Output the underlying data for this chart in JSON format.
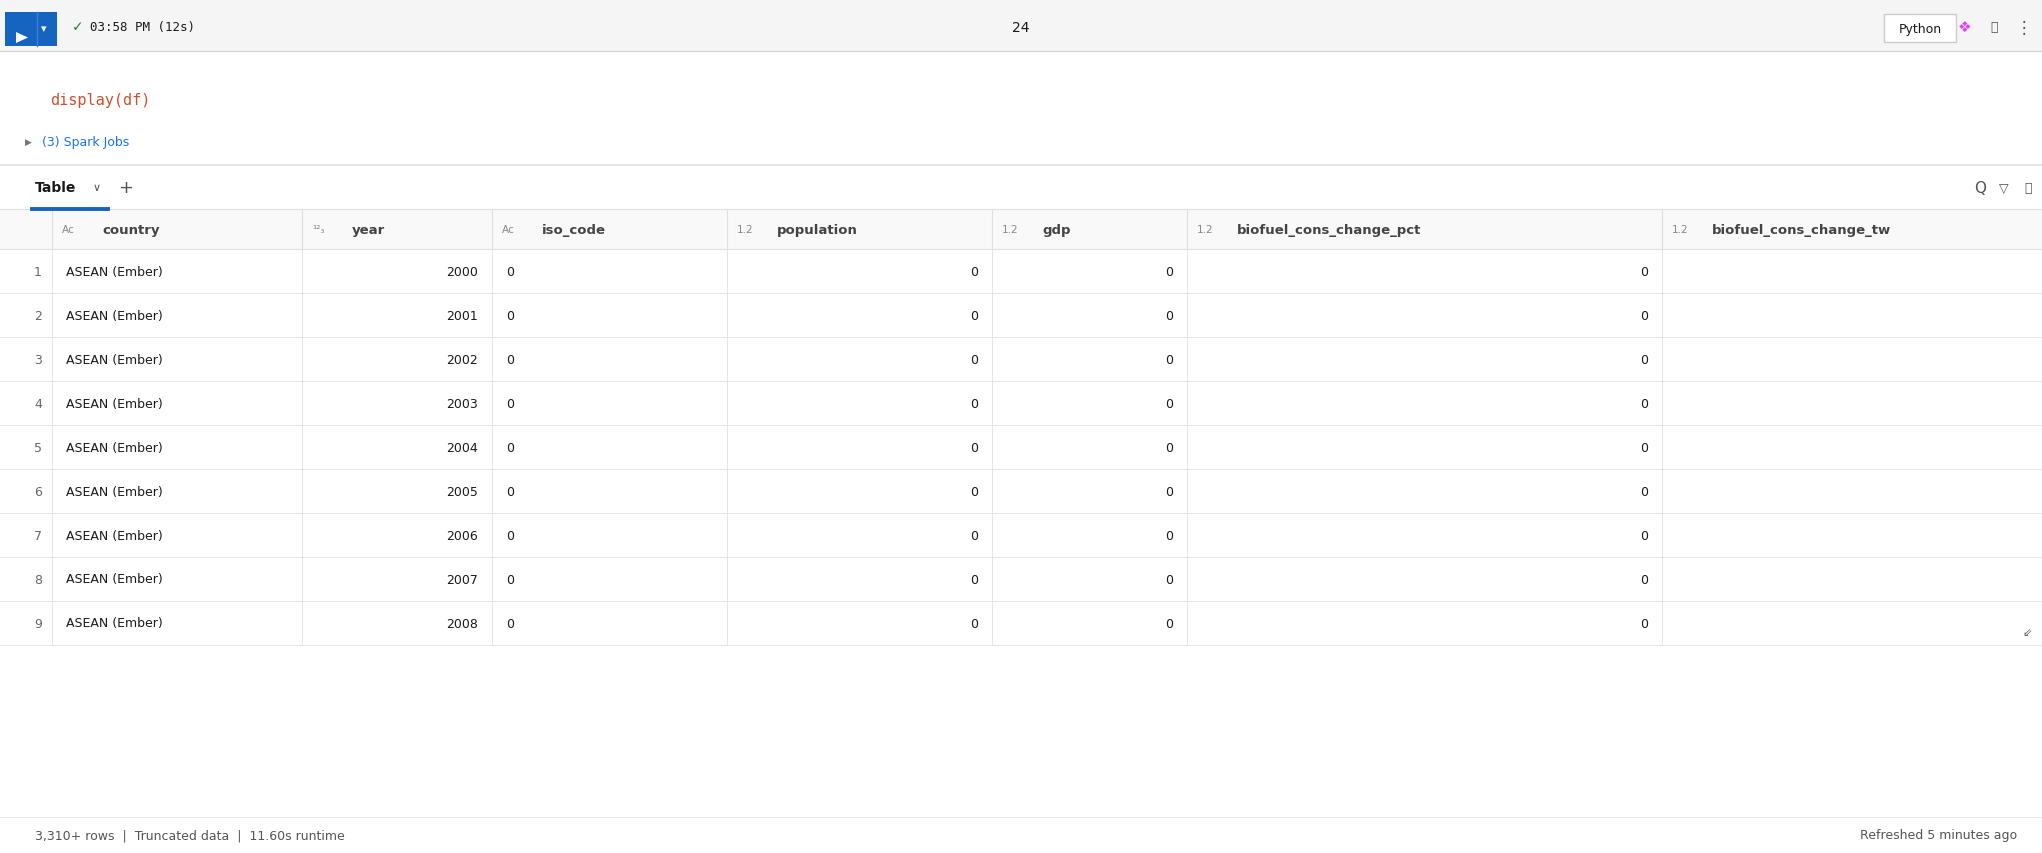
{
  "bg_color": "#ffffff",
  "toolbar_bg": "#f5f5f5",
  "toolbar_text": "03:58 PM (12s)",
  "cell_number": "24",
  "python_label": "Python",
  "code_text": "display(df)",
  "spark_jobs_text": "(3) Spark Jobs",
  "tab_label": "Table",
  "footer_left": "3,310+ rows  |  Truncated data  |  11.60s runtime",
  "footer_right": "Refreshed 5 minutes ago",
  "rows": [
    [
      "1",
      "ASEAN (Ember)",
      "2000",
      "0",
      "0",
      "0",
      "0",
      ""
    ],
    [
      "2",
      "ASEAN (Ember)",
      "2001",
      "0",
      "0",
      "0",
      "0",
      ""
    ],
    [
      "3",
      "ASEAN (Ember)",
      "2002",
      "0",
      "0",
      "0",
      "0",
      ""
    ],
    [
      "4",
      "ASEAN (Ember)",
      "2003",
      "0",
      "0",
      "0",
      "0",
      ""
    ],
    [
      "5",
      "ASEAN (Ember)",
      "2004",
      "0",
      "0",
      "0",
      "0",
      ""
    ],
    [
      "6",
      "ASEAN (Ember)",
      "2005",
      "0",
      "0",
      "0",
      "0",
      ""
    ],
    [
      "7",
      "ASEAN (Ember)",
      "2006",
      "0",
      "0",
      "0",
      "0",
      ""
    ],
    [
      "8",
      "ASEAN (Ember)",
      "2007",
      "0",
      "0",
      "0",
      "0",
      ""
    ],
    [
      "9",
      "ASEAN (Ember)",
      "2008",
      "0",
      "0",
      "0",
      "0",
      ""
    ]
  ],
  "header_color": "#f9f9f9",
  "border_color": "#e0e0e0",
  "text_color": "#1a1a1a",
  "code_color": "#c8522e",
  "index_color": "#666666",
  "header_text_color": "#444444",
  "active_tab_underline": "#1565c0",
  "toolbar_border": "#d0d0d0"
}
